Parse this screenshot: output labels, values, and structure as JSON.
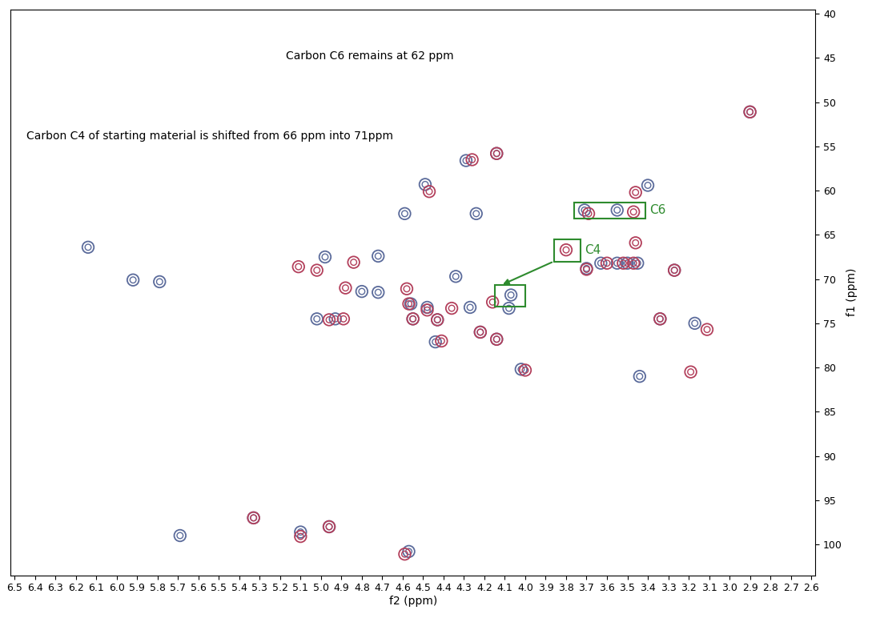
{
  "chart_data": {
    "type": "scatter",
    "x_label": "f2 (ppm)",
    "y_label": "f1 (ppm)",
    "xlim": [
      6.52,
      2.58
    ],
    "ylim": [
      103.5,
      39.5
    ],
    "xticks": [
      6.5,
      6.4,
      6.3,
      6.2,
      6.1,
      6.0,
      5.9,
      5.8,
      5.7,
      5.6,
      5.5,
      5.4,
      5.3,
      5.2,
      5.1,
      5.0,
      4.9,
      4.8,
      4.7,
      4.6,
      4.5,
      4.4,
      4.3,
      4.2,
      4.1,
      4.0,
      3.9,
      3.8,
      3.7,
      3.6,
      3.5,
      3.4,
      3.3,
      3.2,
      3.1,
      3.0,
      2.9,
      2.8,
      2.7,
      2.6
    ],
    "yticks": [
      40,
      45,
      50,
      55,
      60,
      65,
      70,
      75,
      80,
      85,
      90,
      95,
      100
    ],
    "grid": false,
    "series": [
      {
        "color": "#5b6b9b",
        "marker": "o",
        "x": [
          6.14,
          5.92,
          5.79,
          5.69,
          5.33,
          5.1,
          4.96,
          4.57,
          5.02,
          4.93,
          4.98,
          4.8,
          4.72,
          4.72,
          4.56,
          4.55,
          4.49,
          4.48,
          4.44,
          4.43,
          4.34,
          4.29,
          4.27,
          4.24,
          4.22,
          4.14,
          4.14,
          4.08,
          4.07,
          4.02,
          3.71,
          3.7,
          3.63,
          3.55,
          3.55,
          3.5,
          3.45,
          3.44,
          3.4,
          3.34,
          3.27,
          3.17,
          2.9,
          4.59
        ],
        "values": [
          66.4,
          70.1,
          70.3,
          99.0,
          97.0,
          98.6,
          98.0,
          100.8,
          74.5,
          74.5,
          67.5,
          71.4,
          67.4,
          71.5,
          72.8,
          74.5,
          59.3,
          73.2,
          77.1,
          74.6,
          69.7,
          56.6,
          73.2,
          62.6,
          76.0,
          55.8,
          76.8,
          73.3,
          71.8,
          80.2,
          62.2,
          68.8,
          68.2,
          62.2,
          68.2,
          68.2,
          68.2,
          81.0,
          59.4,
          74.5,
          69.0,
          75.0,
          51.1,
          62.6
        ]
      },
      {
        "color": "#b3405c",
        "marker": "o",
        "x": [
          5.33,
          5.1,
          4.96,
          4.59,
          5.11,
          5.02,
          4.96,
          4.89,
          4.88,
          4.84,
          4.58,
          4.57,
          4.55,
          4.47,
          4.48,
          4.41,
          4.43,
          4.36,
          4.26,
          4.22,
          4.14,
          4.14,
          4.16,
          4.0,
          3.8,
          3.69,
          3.7,
          3.6,
          3.52,
          3.47,
          3.47,
          3.46,
          3.34,
          3.27,
          3.19,
          3.11,
          2.9,
          3.46
        ],
        "values": [
          97.0,
          99.1,
          98.0,
          101.1,
          68.6,
          69.0,
          74.6,
          74.5,
          71.0,
          68.1,
          71.1,
          72.8,
          74.5,
          60.1,
          73.5,
          77.0,
          74.6,
          73.3,
          56.5,
          76.0,
          55.8,
          76.8,
          72.6,
          80.3,
          66.7,
          62.6,
          68.9,
          68.2,
          68.2,
          68.2,
          62.4,
          60.2,
          74.5,
          69.0,
          80.5,
          75.7,
          51.1,
          65.9
        ]
      }
    ],
    "highlights": [
      {
        "label": "C6",
        "x": [
          3.76,
          3.41
        ],
        "y": [
          61.3,
          63.2
        ]
      },
      {
        "label": "C4",
        "x": [
          3.86,
          3.73
        ],
        "y": [
          65.5,
          68.0
        ]
      },
      {
        "label": null,
        "x": [
          4.15,
          4.0
        ],
        "y": [
          70.7,
          73.1
        ]
      }
    ],
    "annotations": [
      {
        "text": "Carbon C6 remains at 62 ppm",
        "x": 5.17,
        "y": 44.8
      },
      {
        "text": "Carbon C4 of starting material is shifted from 66 ppm into 71ppm",
        "x": 6.44,
        "y": 53.8
      }
    ]
  }
}
